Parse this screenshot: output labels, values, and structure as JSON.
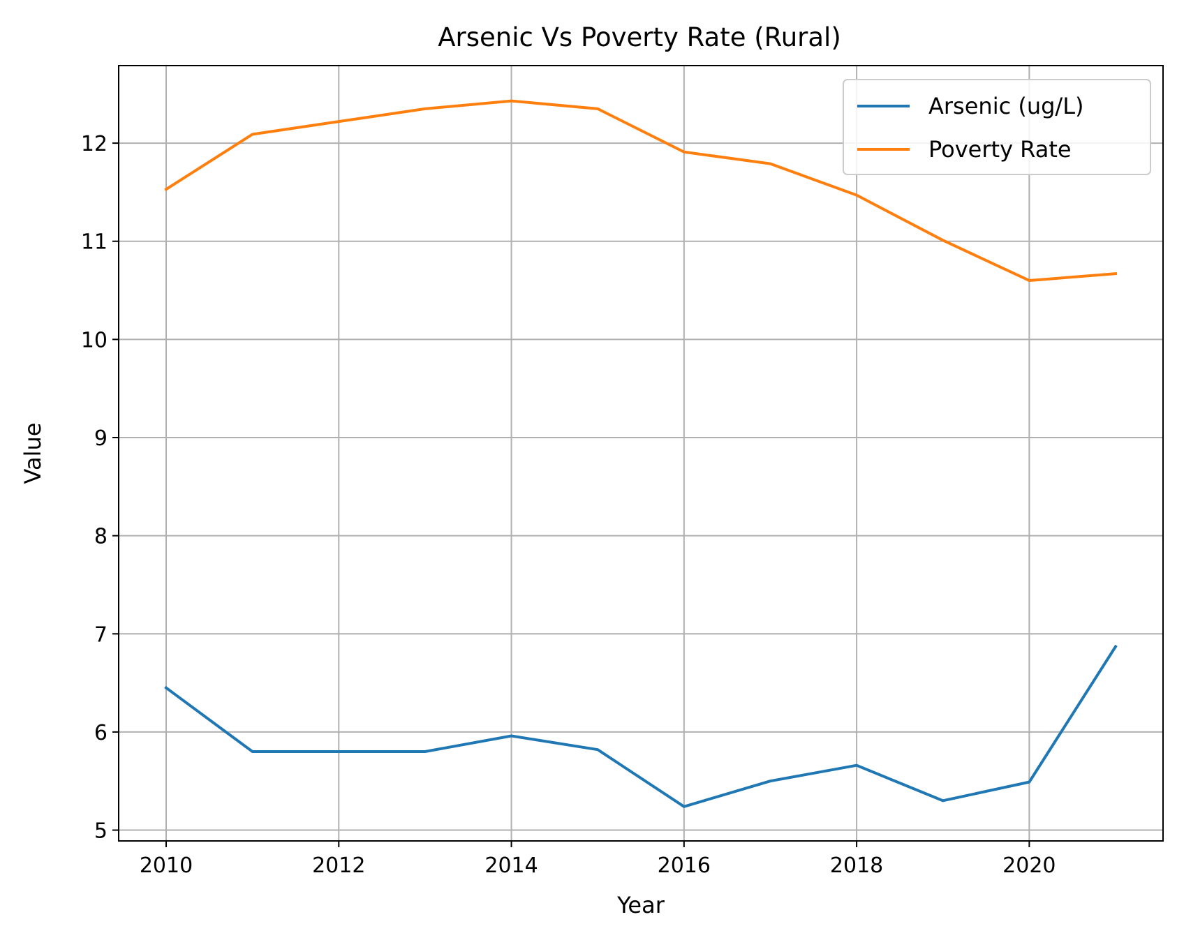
{
  "chart_data": {
    "type": "line",
    "title": "Arsenic Vs Poverty Rate (Rural)",
    "xlabel": "Year",
    "ylabel": "Value",
    "x": [
      2010,
      2011,
      2012,
      2013,
      2014,
      2015,
      2016,
      2017,
      2018,
      2019,
      2020,
      2021
    ],
    "xlim": [
      2009.45,
      2021.55
    ],
    "ylim": [
      4.89,
      12.79
    ],
    "xticks": [
      2010,
      2012,
      2014,
      2016,
      2018,
      2020
    ],
    "yticks": [
      5,
      6,
      7,
      8,
      9,
      10,
      11,
      12
    ],
    "grid": true,
    "legend_position": "upper-right",
    "series": [
      {
        "name": "Arsenic (ug/L)",
        "color": "#1f77b4",
        "values": [
          6.45,
          5.8,
          5.8,
          5.8,
          5.96,
          5.82,
          5.24,
          5.5,
          5.66,
          5.3,
          5.49,
          6.87
        ]
      },
      {
        "name": "Poverty Rate",
        "color": "#ff7f0e",
        "values": [
          11.53,
          12.09,
          12.22,
          12.35,
          12.43,
          12.35,
          11.91,
          11.79,
          11.47,
          11.01,
          10.6,
          10.67
        ]
      }
    ]
  }
}
